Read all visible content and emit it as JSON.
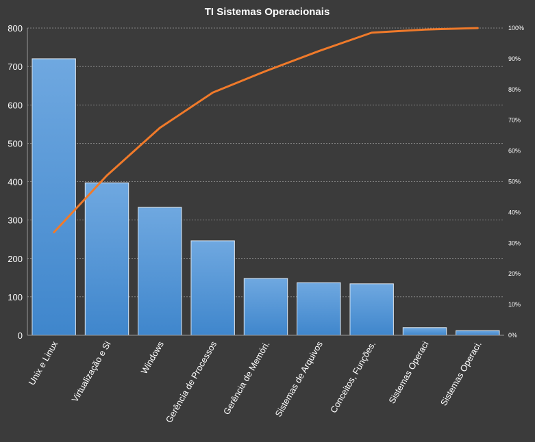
{
  "chart_data": {
    "type": "bar",
    "title": "TI Sistemas  Operacionais",
    "categories": [
      "Unix e Linux",
      "Virtualização e Si",
      "Windows",
      "Gerência de Processos",
      "Gerência de Memóri.",
      "Sistemas de Arquivos",
      "Conceitos, Funções.",
      "Sistemas Operaci",
      "Sistemas Operaci."
    ],
    "series": [
      {
        "type": "bar",
        "values": [
          720,
          397,
          333,
          246,
          148,
          137,
          134,
          20,
          12
        ]
      },
      {
        "type": "line",
        "axis": "right",
        "values": [
          33.5,
          52,
          67.5,
          79,
          86,
          92.5,
          98.5,
          99.5,
          100
        ]
      }
    ],
    "ylim": [
      0,
      800
    ],
    "y_ticks": [
      "0",
      "100",
      "200",
      "300",
      "400",
      "500",
      "600",
      "700",
      "800"
    ],
    "y2lim": [
      0,
      100
    ],
    "y2_ticks": [
      "0%",
      "10%",
      "20%",
      "30%",
      "40%",
      "50%",
      "60%",
      "70%",
      "80%",
      "90%",
      "100%"
    ],
    "grid": true,
    "legend": "none",
    "colors": {
      "background": "#3b3b3b",
      "bar_top": "#6fa8e0",
      "bar_bottom": "#3f86cc",
      "bar_edge": "#dce6f0",
      "line": "#f07a2a",
      "text": "#ffffff",
      "grid": "#cfcfcf"
    }
  }
}
